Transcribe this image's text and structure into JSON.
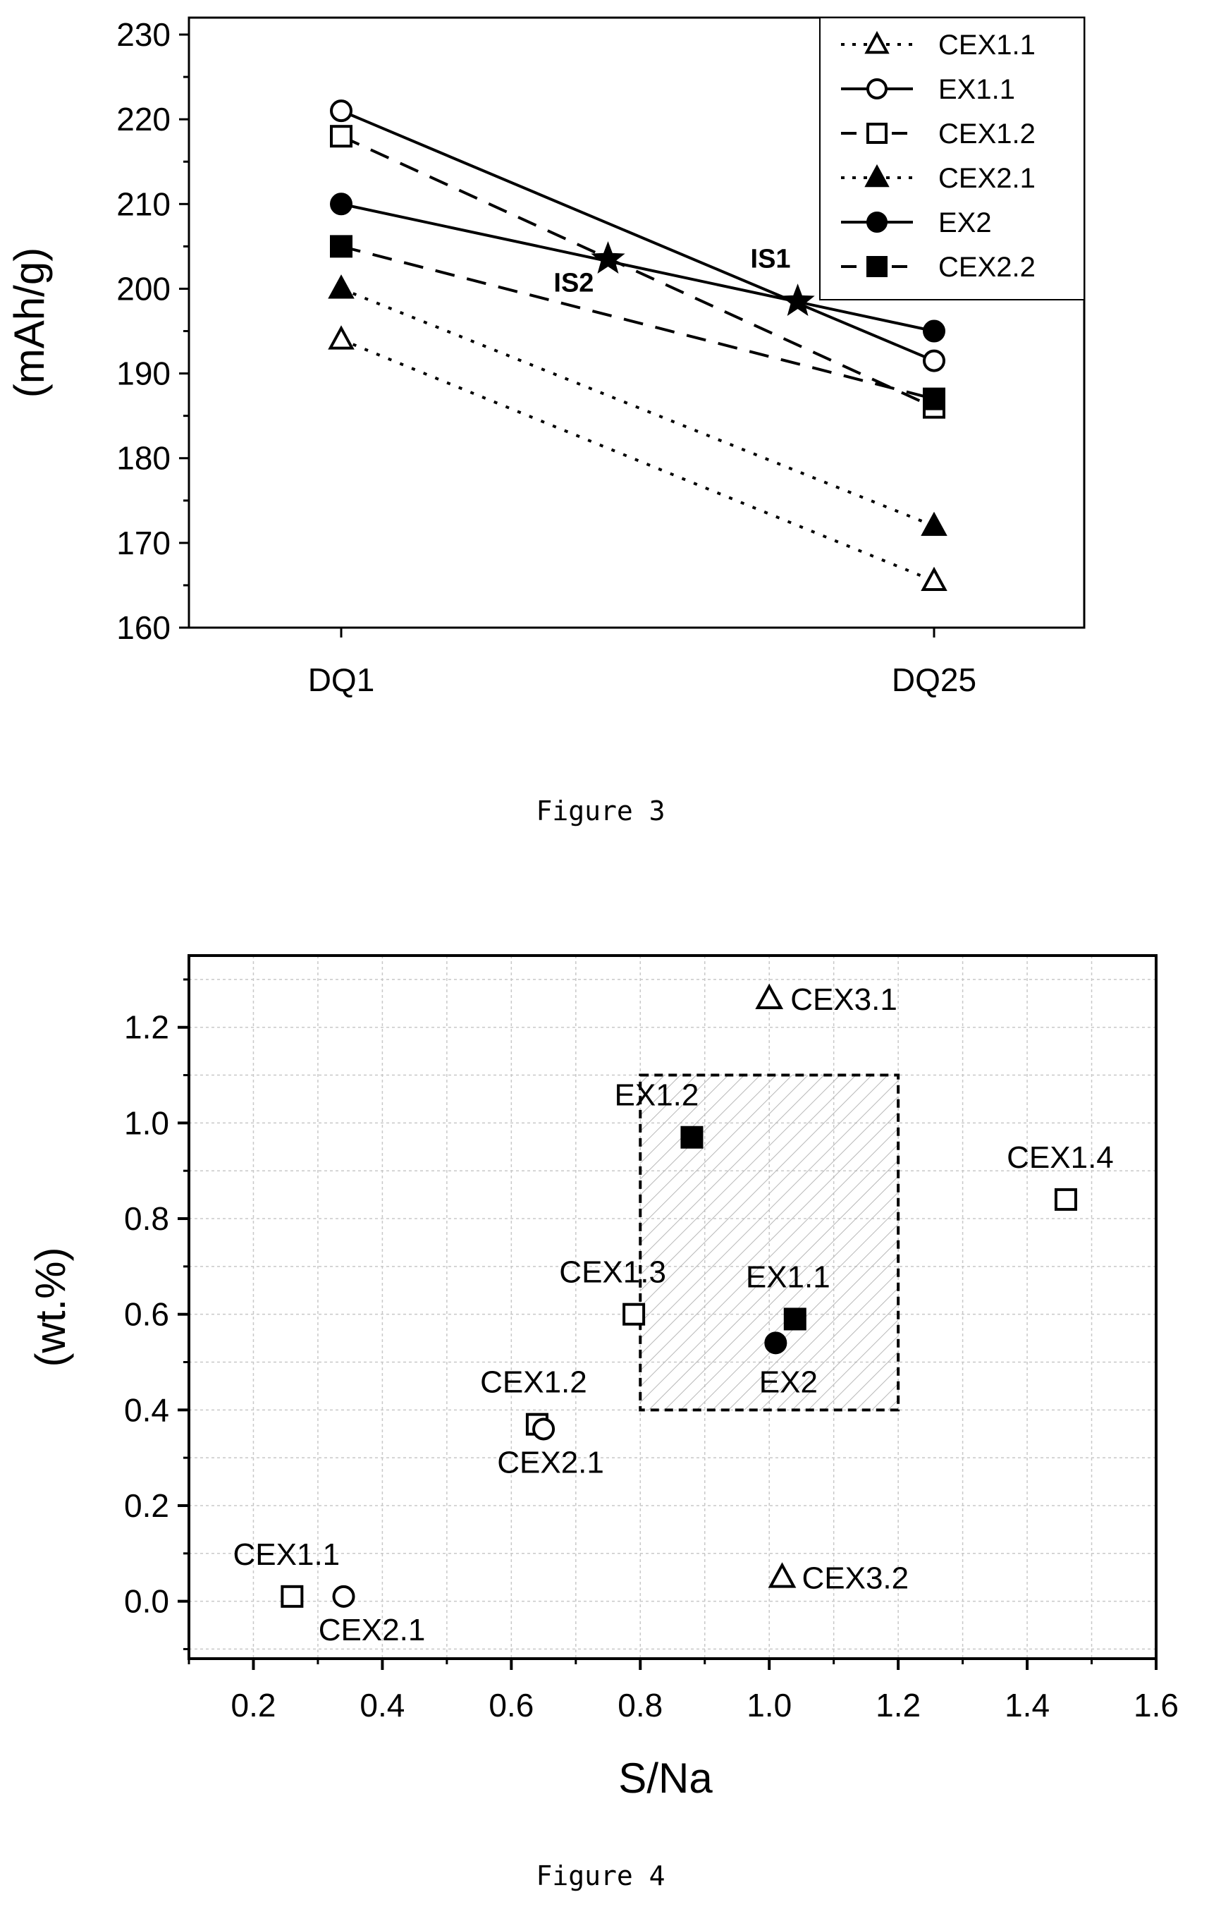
{
  "figure3": {
    "caption": "Figure 3",
    "chart_data": {
      "type": "line",
      "ylabel": "(mAh/g)",
      "categories": [
        "DQ1",
        "DQ25"
      ],
      "ylim": [
        160,
        232
      ],
      "yticks": [
        "160",
        "170",
        "180",
        "190",
        "200",
        "210",
        "220",
        "230"
      ],
      "legend_position": "top-right",
      "series": [
        {
          "name": "CEX1.1",
          "values": [
            194,
            165.5
          ],
          "marker": "triangle-open",
          "line": "dotted"
        },
        {
          "name": "EX1.1",
          "values": [
            221,
            191.5
          ],
          "marker": "circle-open",
          "line": "solid"
        },
        {
          "name": "CEX1.2",
          "values": [
            218,
            186
          ],
          "marker": "square-open",
          "line": "dashed"
        },
        {
          "name": "CEX2.1",
          "values": [
            200,
            172
          ],
          "marker": "triangle-filled",
          "line": "dotted"
        },
        {
          "name": "EX2",
          "values": [
            210,
            195
          ],
          "marker": "circle-filled",
          "line": "solid"
        },
        {
          "name": "CEX2.2",
          "values": [
            205,
            187
          ],
          "marker": "square-filled",
          "line": "dashed"
        }
      ],
      "intersections": [
        {
          "label": "IS1",
          "x": 1.77,
          "y": 198.5
        },
        {
          "label": "IS2",
          "x": 1.45,
          "y": 203.5
        }
      ]
    }
  },
  "figure4": {
    "caption": "Figure 4",
    "chart_data": {
      "type": "scatter",
      "xlabel": "S/Na",
      "ylabel": "(wt.%)",
      "xlim": [
        0.1,
        1.6
      ],
      "ylim": [
        -0.12,
        1.35
      ],
      "xticks": [
        "0.2",
        "0.4",
        "0.6",
        "0.8",
        "1.0",
        "1.2",
        "1.4",
        "1.6"
      ],
      "yticks": [
        "0.0",
        "0.2",
        "0.4",
        "0.6",
        "0.8",
        "1.0",
        "1.2"
      ],
      "grid": true,
      "highlight_region": {
        "x": [
          0.8,
          1.2
        ],
        "y": [
          0.4,
          1.1
        ]
      },
      "points": [
        {
          "label": "CEX1.1",
          "x": 0.26,
          "y": 0.01,
          "marker": "square-open"
        },
        {
          "label": "CEX2.1",
          "x": 0.34,
          "y": 0.01,
          "marker": "circle-open"
        },
        {
          "label": "CEX1.2",
          "x": 0.64,
          "y": 0.37,
          "marker": "square-open"
        },
        {
          "label": "CEX2.1",
          "x": 0.65,
          "y": 0.36,
          "marker": "circle-open"
        },
        {
          "label": "CEX1.3",
          "x": 0.79,
          "y": 0.6,
          "marker": "square-open"
        },
        {
          "label": "EX1.2",
          "x": 0.88,
          "y": 0.97,
          "marker": "square-filled"
        },
        {
          "label": "EX1.1",
          "x": 1.04,
          "y": 0.59,
          "marker": "square-filled"
        },
        {
          "label": "EX2",
          "x": 1.01,
          "y": 0.54,
          "marker": "circle-filled"
        },
        {
          "label": "CEX3.1",
          "x": 1.0,
          "y": 1.26,
          "marker": "triangle-open"
        },
        {
          "label": "CEX3.2",
          "x": 1.02,
          "y": 0.05,
          "marker": "triangle-open"
        },
        {
          "label": "CEX1.4",
          "x": 1.46,
          "y": 0.84,
          "marker": "square-open"
        }
      ]
    }
  }
}
